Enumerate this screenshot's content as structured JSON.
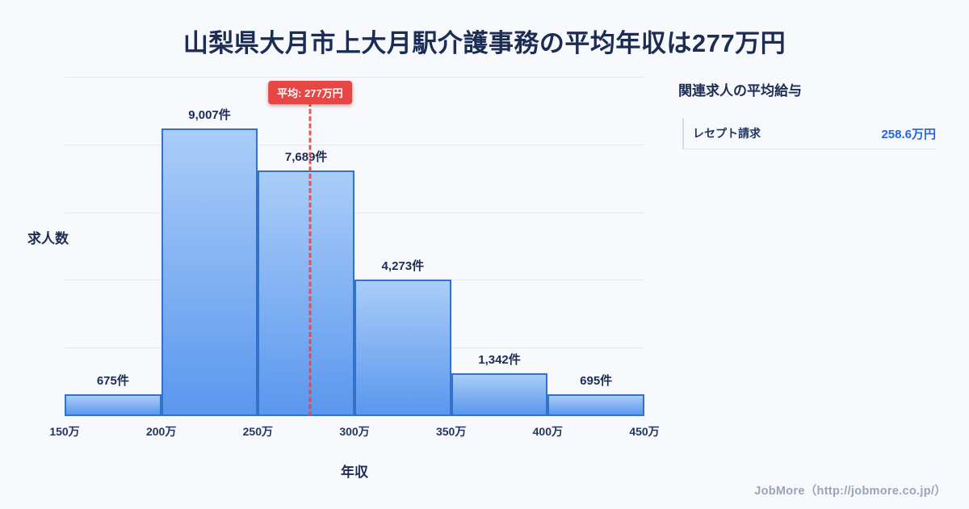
{
  "page": {
    "title": "山梨県大月市上大月駅介護事務の平均年収は277万円",
    "footer": "JobMore（http://jobmore.co.jp/）"
  },
  "chart_data": {
    "type": "bar",
    "title": "山梨県大月市上大月駅介護事務の平均年収は277万円",
    "xlabel": "年収",
    "ylabel": "求人数",
    "x_tick_labels": [
      "150万",
      "200万",
      "250万",
      "300万",
      "350万",
      "400万",
      "450万"
    ],
    "x_range": [
      150,
      450
    ],
    "bins": [
      "150万-200万",
      "200万-250万",
      "250万-300万",
      "300万-350万",
      "350万-400万",
      "400万-450万"
    ],
    "values": [
      675,
      9007,
      7689,
      4273,
      1342,
      695
    ],
    "bar_labels": [
      "675件",
      "9,007件",
      "7,689件",
      "4,273件",
      "1,342件",
      "695件"
    ],
    "ylim": [
      0,
      10600
    ],
    "grid": "horizontal",
    "legend": "none",
    "average": {
      "value": 277,
      "label": "平均: 277万円"
    },
    "colors": {
      "bar_fill_top": "#a9cdf8",
      "bar_fill_bottom": "#5b97ee",
      "bar_border": "#3372c9",
      "average_line": "#e84545",
      "badge_bg": "#e84545",
      "badge_text": "#ffffff",
      "title_text": "#1c2d55",
      "value_text": "#2462e8",
      "background": "#f7f9fc"
    }
  },
  "side_panel": {
    "heading": "関連求人の平均給与",
    "items": [
      {
        "label": "レセプト請求",
        "value": "258.6万円"
      }
    ]
  }
}
